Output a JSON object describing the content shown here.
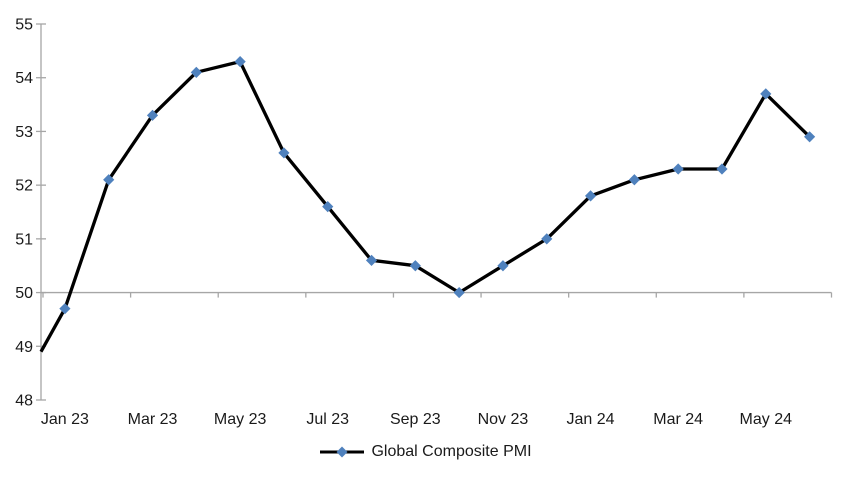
{
  "chart_data": {
    "type": "line",
    "title": "",
    "categories": [
      "Jan 23",
      "Feb 23",
      "Mar 23",
      "Apr 23",
      "May 23",
      "Jun 23",
      "Jul 23",
      "Aug 23",
      "Sep 23",
      "Oct 23",
      "Nov 23",
      "Dec 23",
      "Jan 24",
      "Feb 24",
      "Mar 24",
      "Apr 24",
      "May 24",
      "Jun 24"
    ],
    "series": [
      {
        "name": "Global Composite PMI",
        "values": [
          49.7,
          52.1,
          53.3,
          54.1,
          54.3,
          52.6,
          51.6,
          50.6,
          50.5,
          50.0,
          50.5,
          51.0,
          51.8,
          52.1,
          52.3,
          52.3,
          53.7,
          52.9
        ],
        "clipped_lead_in_value_at_left_axis": 48.9,
        "line_color": "#000000",
        "marker_shape": "diamond",
        "marker_color": "#4F81BD"
      }
    ],
    "x_tick_labels": [
      "Jan 23",
      "Mar 23",
      "May 23",
      "Jul 23",
      "Sep 23",
      "Nov 23",
      "Jan 24",
      "Mar 24",
      "May 24"
    ],
    "y_tick_labels": [
      "48",
      "49",
      "50",
      "51",
      "52",
      "53",
      "54",
      "55"
    ],
    "ylim": [
      48,
      55
    ],
    "x_axis_crosses_at": 50,
    "grid": false,
    "legend": {
      "position": "bottom-center",
      "label": "Global Composite PMI"
    },
    "axis_color": "#A6A6A6",
    "text_color": "#1a1a1a",
    "background": "#FFFFFF"
  }
}
